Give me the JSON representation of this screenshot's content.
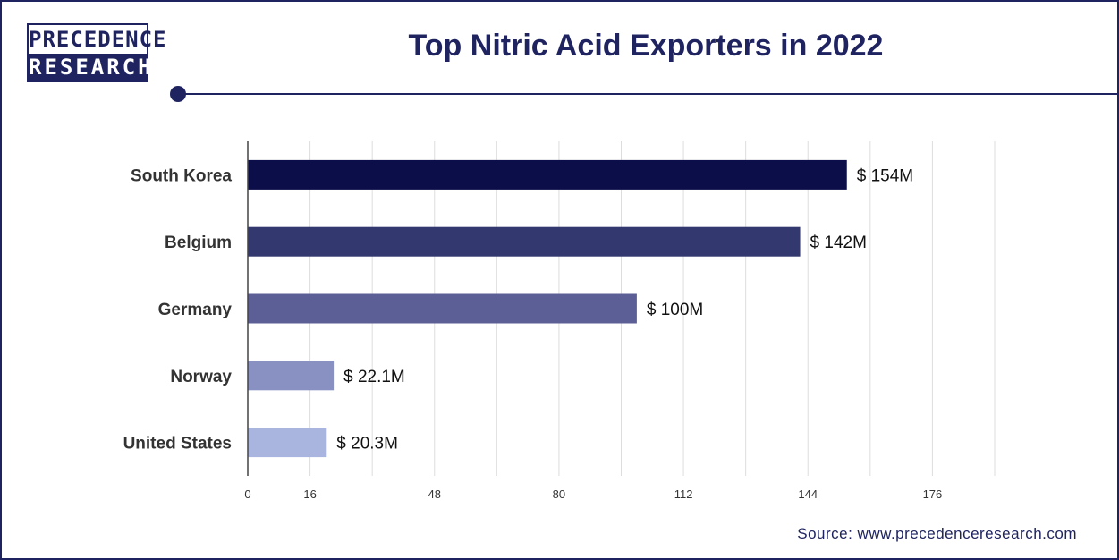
{
  "brand": {
    "line1": "PRECEDENCE",
    "line2": "RESEARCH"
  },
  "title": "Top Nitric Acid Exporters in 2022",
  "source": "Source: www.precedenceresearch.com",
  "colors": {
    "navy": "#1f2460",
    "bar_colors": [
      "#0c0e4a",
      "#33386e",
      "#5b5f96",
      "#8990c2",
      "#aab5df"
    ],
    "grid": "#dddddd"
  },
  "chart_data": {
    "type": "bar",
    "orientation": "horizontal",
    "title": "Top Nitric Acid Exporters in 2022",
    "categories": [
      "South Korea",
      "Belgium",
      "Germany",
      "Norway",
      "United States"
    ],
    "values": [
      154,
      142,
      100,
      22.1,
      20.3
    ],
    "value_labels": [
      "$ 154M",
      "$ 142M",
      "$ 100M",
      "$ 22.1M",
      "$ 20.3M"
    ],
    "x_ticks": [
      0,
      16,
      48,
      80,
      112,
      144,
      176
    ],
    "xlim": [
      0,
      192
    ],
    "grid": true
  }
}
